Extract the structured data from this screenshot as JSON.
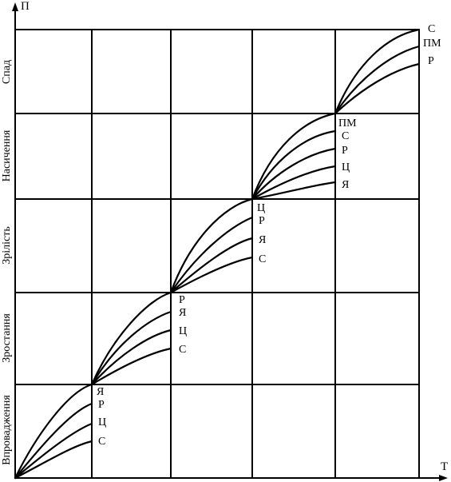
{
  "axes": {
    "y_label": "П",
    "x_label": "Т"
  },
  "stages": [
    "Впровадження",
    "Зростання",
    "Зрілість",
    "Насичення",
    "Спад"
  ],
  "groups": [
    {
      "curves": [
        "Я",
        "Р",
        "Ц",
        "С"
      ]
    },
    {
      "curves": [
        "Р",
        "Я",
        "Ц",
        "С"
      ]
    },
    {
      "curves": [
        "Ц",
        "Р",
        "Я",
        "С"
      ]
    },
    {
      "curves": [
        "ПМ",
        "С",
        "Р",
        "Ц",
        "Я"
      ]
    },
    {
      "curves": [
        "С",
        "ПМ",
        "Р"
      ]
    }
  ]
}
